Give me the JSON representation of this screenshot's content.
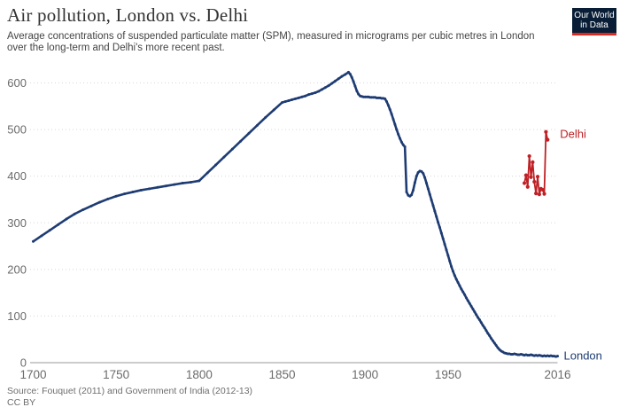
{
  "header": {
    "title": "Air pollution, London vs. Delhi",
    "subtitle_line1": "Average concentrations of suspended particulate matter (SPM), measured in micrograms per cubic metres in London",
    "subtitle_line2": "over the long-term and Delhi's more recent past."
  },
  "logo": {
    "line1": "Our World",
    "line2": "in Data",
    "bg_color": "#091e36",
    "accent_color": "#dc2a20"
  },
  "footer": {
    "source": "Source: Fouquet (2011) and Government of India (2012-13)",
    "license": "CC BY"
  },
  "colors": {
    "grid": "#d8d8d8",
    "axis": "#999999",
    "tick_label": "#6b6b6b"
  },
  "chart_data": {
    "type": "line",
    "title": "Air pollution, London vs. Delhi",
    "unit": "micrograms per cubic metre (SPM)",
    "x_domain": [
      1700,
      2016
    ],
    "y_domain": [
      0,
      600
    ],
    "xticks": [
      1700,
      1750,
      1800,
      1850,
      1900,
      1950,
      2016
    ],
    "yticks": [
      0,
      100,
      200,
      300,
      400,
      500,
      600
    ],
    "grid": "horizontal-dotted",
    "legend_position": "series-end-labels",
    "series": [
      {
        "name": "London",
        "color": "#1e3c73",
        "points": [
          [
            1700,
            260
          ],
          [
            1705,
            272
          ],
          [
            1710,
            284
          ],
          [
            1715,
            296
          ],
          [
            1720,
            308
          ],
          [
            1725,
            319
          ],
          [
            1730,
            328
          ],
          [
            1735,
            336
          ],
          [
            1740,
            344
          ],
          [
            1745,
            351
          ],
          [
            1750,
            357
          ],
          [
            1755,
            362
          ],
          [
            1760,
            366
          ],
          [
            1765,
            370
          ],
          [
            1770,
            373
          ],
          [
            1775,
            376
          ],
          [
            1780,
            379
          ],
          [
            1785,
            382
          ],
          [
            1790,
            385
          ],
          [
            1795,
            387
          ],
          [
            1800,
            390
          ],
          [
            1805,
            407
          ],
          [
            1810,
            424
          ],
          [
            1815,
            441
          ],
          [
            1820,
            458
          ],
          [
            1825,
            475
          ],
          [
            1830,
            492
          ],
          [
            1835,
            509
          ],
          [
            1840,
            526
          ],
          [
            1845,
            542
          ],
          [
            1850,
            558
          ],
          [
            1852,
            560
          ],
          [
            1854,
            562
          ],
          [
            1856,
            564
          ],
          [
            1858,
            566
          ],
          [
            1860,
            568
          ],
          [
            1862,
            570
          ],
          [
            1864,
            572
          ],
          [
            1866,
            575
          ],
          [
            1868,
            577
          ],
          [
            1870,
            579
          ],
          [
            1872,
            582
          ],
          [
            1874,
            586
          ],
          [
            1876,
            590
          ],
          [
            1878,
            594
          ],
          [
            1880,
            599
          ],
          [
            1882,
            604
          ],
          [
            1884,
            609
          ],
          [
            1886,
            614
          ],
          [
            1888,
            618
          ],
          [
            1890,
            623
          ],
          [
            1891,
            619
          ],
          [
            1892,
            612
          ],
          [
            1893,
            603
          ],
          [
            1894,
            593
          ],
          [
            1895,
            583
          ],
          [
            1896,
            576
          ],
          [
            1897,
            572
          ],
          [
            1898,
            571
          ],
          [
            1899,
            570
          ],
          [
            1900,
            570
          ],
          [
            1901,
            570
          ],
          [
            1902,
            570
          ],
          [
            1903,
            569
          ],
          [
            1904,
            569
          ],
          [
            1905,
            569
          ],
          [
            1906,
            569
          ],
          [
            1907,
            568
          ],
          [
            1908,
            568
          ],
          [
            1909,
            568
          ],
          [
            1910,
            567
          ],
          [
            1911,
            567
          ],
          [
            1912,
            566
          ],
          [
            1913,
            560
          ],
          [
            1914,
            552
          ],
          [
            1915,
            543
          ],
          [
            1916,
            533
          ],
          [
            1917,
            522
          ],
          [
            1918,
            511
          ],
          [
            1919,
            500
          ],
          [
            1920,
            490
          ],
          [
            1921,
            481
          ],
          [
            1922,
            473
          ],
          [
            1923,
            467
          ],
          [
            1924,
            463
          ],
          [
            1925,
            366
          ],
          [
            1926,
            359
          ],
          [
            1927,
            357
          ],
          [
            1928,
            360
          ],
          [
            1929,
            370
          ],
          [
            1930,
            386
          ],
          [
            1931,
            400
          ],
          [
            1932,
            408
          ],
          [
            1933,
            411
          ],
          [
            1934,
            410
          ],
          [
            1935,
            406
          ],
          [
            1936,
            397
          ],
          [
            1937,
            385
          ],
          [
            1938,
            373
          ],
          [
            1939,
            361
          ],
          [
            1940,
            349
          ],
          [
            1941,
            337
          ],
          [
            1942,
            325
          ],
          [
            1943,
            313
          ],
          [
            1944,
            301
          ],
          [
            1945,
            290
          ],
          [
            1946,
            278
          ],
          [
            1947,
            266
          ],
          [
            1948,
            254
          ],
          [
            1949,
            242
          ],
          [
            1950,
            230
          ],
          [
            1951,
            218
          ],
          [
            1952,
            206
          ],
          [
            1953,
            196
          ],
          [
            1954,
            187
          ],
          [
            1955,
            179
          ],
          [
            1956,
            172
          ],
          [
            1957,
            165
          ],
          [
            1958,
            158
          ],
          [
            1959,
            152
          ],
          [
            1960,
            146
          ],
          [
            1961,
            139
          ],
          [
            1962,
            133
          ],
          [
            1963,
            127
          ],
          [
            1964,
            121
          ],
          [
            1965,
            115
          ],
          [
            1966,
            109
          ],
          [
            1967,
            103
          ],
          [
            1968,
            97
          ],
          [
            1969,
            92
          ],
          [
            1970,
            86
          ],
          [
            1971,
            80
          ],
          [
            1972,
            75
          ],
          [
            1973,
            69
          ],
          [
            1974,
            63
          ],
          [
            1975,
            58
          ],
          [
            1976,
            52
          ],
          [
            1977,
            47
          ],
          [
            1978,
            42
          ],
          [
            1979,
            37
          ],
          [
            1980,
            32
          ],
          [
            1981,
            28
          ],
          [
            1982,
            25
          ],
          [
            1983,
            23
          ],
          [
            1984,
            21
          ],
          [
            1985,
            20
          ],
          [
            1986,
            19
          ],
          [
            1987,
            19
          ],
          [
            1988,
            18
          ],
          [
            1989,
            18
          ],
          [
            1990,
            19
          ],
          [
            1991,
            18
          ],
          [
            1992,
            17
          ],
          [
            1993,
            17
          ],
          [
            1994,
            18
          ],
          [
            1995,
            17
          ],
          [
            1996,
            16
          ],
          [
            1997,
            17
          ],
          [
            1998,
            16
          ],
          [
            1999,
            16
          ],
          [
            2000,
            17
          ],
          [
            2001,
            16
          ],
          [
            2002,
            15
          ],
          [
            2003,
            16
          ],
          [
            2004,
            15
          ],
          [
            2005,
            16
          ],
          [
            2006,
            15
          ],
          [
            2007,
            14
          ],
          [
            2008,
            15
          ],
          [
            2009,
            14
          ],
          [
            2010,
            15
          ],
          [
            2011,
            14
          ],
          [
            2012,
            15
          ],
          [
            2013,
            14
          ],
          [
            2014,
            14
          ],
          [
            2015,
            13
          ],
          [
            2016,
            14
          ]
        ]
      },
      {
        "name": "Delhi",
        "color": "#bf2025",
        "points": [
          [
            1996,
            385
          ],
          [
            1997,
            402
          ],
          [
            1998,
            377
          ],
          [
            1999,
            443
          ],
          [
            2000,
            398
          ],
          [
            2001,
            430
          ],
          [
            2002,
            388
          ],
          [
            2003,
            363
          ],
          [
            2004,
            399
          ],
          [
            2005,
            361
          ],
          [
            2006,
            373
          ],
          [
            2007,
            371
          ],
          [
            2008,
            362
          ],
          [
            2009,
            495
          ],
          [
            2010,
            478
          ]
        ]
      }
    ]
  }
}
